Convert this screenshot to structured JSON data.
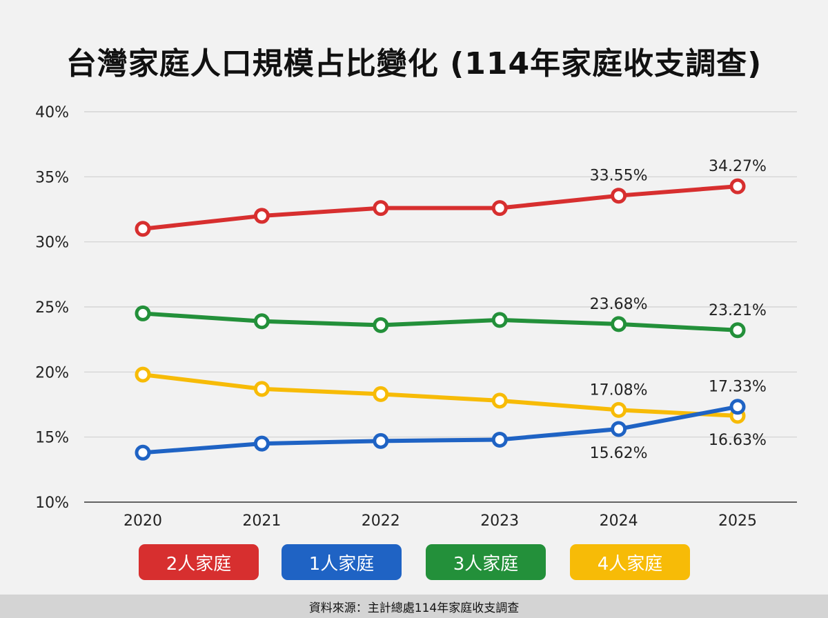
{
  "chart_data": {
    "type": "line",
    "title": "台灣家庭人口規模占比變化 (114年家庭收支調查)",
    "categories": [
      "2020",
      "2021",
      "2022",
      "2023",
      "2024",
      "2025"
    ],
    "ylim": [
      10,
      40
    ],
    "yticks": [
      10,
      15,
      20,
      25,
      30,
      35,
      40
    ],
    "y_unit": "%",
    "grid": true,
    "legend_position": "bottom",
    "series": [
      {
        "name": "2人家庭",
        "color": "#d72f2f",
        "values": [
          31.0,
          32.0,
          32.6,
          32.6,
          33.55,
          34.27
        ],
        "labels": [
          {
            "index": 4,
            "text": "33.55%",
            "pos": "above"
          },
          {
            "index": 5,
            "text": "34.27%",
            "pos": "above"
          }
        ]
      },
      {
        "name": "1人家庭",
        "color": "#1f63c4",
        "values": [
          13.8,
          14.5,
          14.7,
          14.8,
          15.62,
          17.33
        ],
        "labels": [
          {
            "index": 4,
            "text": "15.62%",
            "pos": "below"
          },
          {
            "index": 5,
            "text": "17.33%",
            "pos": "above"
          }
        ]
      },
      {
        "name": "3人家庭",
        "color": "#23903a",
        "values": [
          24.5,
          23.9,
          23.6,
          24.0,
          23.68,
          23.21
        ],
        "labels": [
          {
            "index": 4,
            "text": "23.68%",
            "pos": "above"
          },
          {
            "index": 5,
            "text": "23.21%",
            "pos": "above"
          }
        ]
      },
      {
        "name": "4人家庭",
        "color": "#f7bb07",
        "values": [
          19.8,
          18.7,
          18.3,
          17.8,
          17.08,
          16.63
        ],
        "labels": [
          {
            "index": 4,
            "text": "17.08%",
            "pos": "above"
          },
          {
            "index": 5,
            "text": "16.63%",
            "pos": "below"
          }
        ]
      }
    ],
    "source": "資料來源：主計總處114年家庭收支調查"
  }
}
